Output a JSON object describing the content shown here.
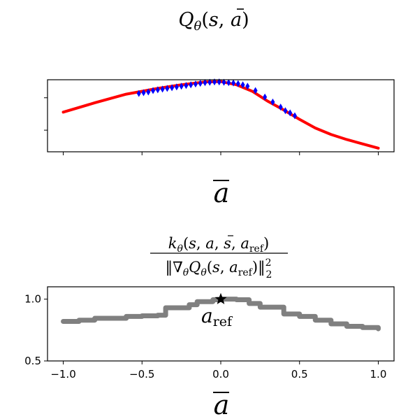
{
  "chart_data": [
    {
      "type": "line",
      "title": "Q_θ(s, ā)",
      "xlabel": "ā",
      "ylabel": "",
      "xlim": [
        -1.1,
        1.1
      ],
      "ylim": [
        0.0,
        1.0
      ],
      "x_ticks": [
        -1.0,
        -0.5,
        0.0,
        0.5,
        1.0
      ],
      "show_tick_labels": false,
      "grid": false,
      "series": [
        {
          "color": "#ff0000",
          "x": [
            -1.0,
            -0.8,
            -0.6,
            -0.4,
            -0.25,
            -0.1,
            0.0,
            0.1,
            0.2,
            0.3,
            0.4,
            0.5,
            0.6,
            0.7,
            0.8,
            0.9,
            1.0
          ],
          "y": [
            0.55,
            0.68,
            0.8,
            0.88,
            0.93,
            0.97,
            0.975,
            0.93,
            0.84,
            0.7,
            0.58,
            0.45,
            0.33,
            0.24,
            0.17,
            0.11,
            0.05
          ]
        },
        {
          "color": "#0000ff",
          "marker": "diamond",
          "x": [
            -0.52,
            -0.49,
            -0.46,
            -0.43,
            -0.4,
            -0.37,
            -0.34,
            -0.31,
            -0.28,
            -0.25,
            -0.22,
            -0.19,
            -0.16,
            -0.13,
            -0.1,
            -0.07,
            -0.04,
            -0.01,
            0.02,
            0.05,
            0.08,
            0.11,
            0.14,
            0.17,
            0.22,
            0.28,
            0.33,
            0.38,
            0.41,
            0.44,
            0.47
          ],
          "y": [
            0.81,
            0.82,
            0.83,
            0.85,
            0.86,
            0.87,
            0.88,
            0.89,
            0.9,
            0.91,
            0.92,
            0.93,
            0.94,
            0.95,
            0.96,
            0.965,
            0.97,
            0.97,
            0.965,
            0.96,
            0.955,
            0.945,
            0.93,
            0.91,
            0.85,
            0.76,
            0.69,
            0.62,
            0.57,
            0.54,
            0.5
          ]
        }
      ]
    },
    {
      "type": "line",
      "title": "k_θ(s, ā, s, a_ref) / ‖∇_θ Q_θ(s, a_ref)‖₂²",
      "xlabel": "ā",
      "ylabel": "",
      "xlim": [
        -1.1,
        1.1
      ],
      "ylim": [
        0.5,
        1.1
      ],
      "x_ticks": [
        -1.0,
        -0.5,
        0.0,
        0.5,
        1.0
      ],
      "x_tick_labels": [
        "−1.0",
        "−0.5",
        "0.0",
        "0.5",
        "1.0"
      ],
      "y_ticks": [
        0.5,
        1.0
      ],
      "y_tick_labels": [
        "0.5",
        "1.0"
      ],
      "grid": false,
      "series": [
        {
          "color": "#808080",
          "step": true,
          "x": [
            -1.0,
            -0.9,
            -0.8,
            -0.6,
            -0.5,
            -0.4,
            -0.35,
            -0.2,
            -0.15,
            -0.05,
            0.0,
            0.1,
            0.18,
            0.25,
            0.35,
            0.4,
            0.5,
            0.6,
            0.7,
            0.8,
            0.9,
            1.0
          ],
          "y": [
            0.82,
            0.83,
            0.845,
            0.86,
            0.865,
            0.87,
            0.93,
            0.955,
            0.98,
            0.995,
            1.0,
            0.995,
            0.965,
            0.935,
            0.935,
            0.88,
            0.86,
            0.83,
            0.8,
            0.78,
            0.77,
            0.76
          ]
        }
      ],
      "annotations": [
        {
          "text": "a_ref",
          "marker": "star",
          "x": 0.0,
          "y": 1.0
        }
      ]
    }
  ]
}
